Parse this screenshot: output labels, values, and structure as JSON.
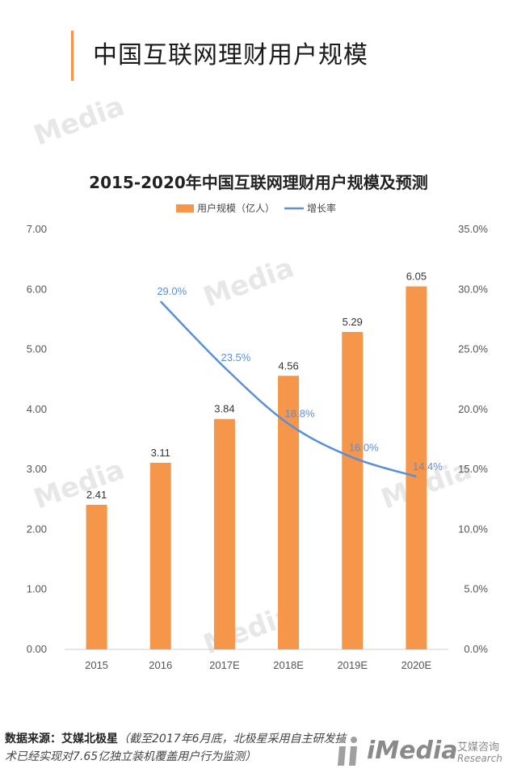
{
  "header": {
    "title": "中国互联网理财用户规模"
  },
  "watermark_text": "Media",
  "chart_data": {
    "type": "bar+line",
    "title": "2015-2020年中国互联网理财用户规模及预测",
    "categories": [
      "2015",
      "2016",
      "2017E",
      "2018E",
      "2019E",
      "2020E"
    ],
    "series": [
      {
        "name": "用户规模（亿人）",
        "kind": "bar",
        "axis": "left",
        "values": [
          2.41,
          3.11,
          3.84,
          4.56,
          5.29,
          6.05
        ],
        "labels": [
          "2.41",
          "3.11",
          "3.84",
          "4.56",
          "5.29",
          "6.05"
        ],
        "color": "#f5964a"
      },
      {
        "name": "增长率",
        "kind": "line",
        "axis": "right",
        "values": [
          null,
          29.0,
          23.5,
          18.8,
          16.0,
          14.4
        ],
        "labels": [
          "",
          "29.0%",
          "23.5%",
          "18.8%",
          "16.0%",
          "14.4%"
        ],
        "color": "#5b8fd6"
      }
    ],
    "y_left": {
      "min": 0,
      "max": 7,
      "ticks": [
        "0.00",
        "1.00",
        "2.00",
        "3.00",
        "4.00",
        "5.00",
        "6.00",
        "7.00"
      ]
    },
    "y_right": {
      "min": 0,
      "max": 35,
      "ticks": [
        "0.0%",
        "5.0%",
        "10.0%",
        "15.0%",
        "20.0%",
        "25.0%",
        "30.0%",
        "35.0%"
      ]
    },
    "legend_position": "top-center",
    "grid": false
  },
  "footer": {
    "source_label": "数据来源：艾媒北极星",
    "source_note": "（截至2017年6月底，北极星采用自主研发技术已经实现对7.65亿独立装机覆盖用户行为监测）"
  },
  "brand": {
    "name": "iMedia",
    "cn": "艾媒咨询",
    "en": "Research"
  }
}
